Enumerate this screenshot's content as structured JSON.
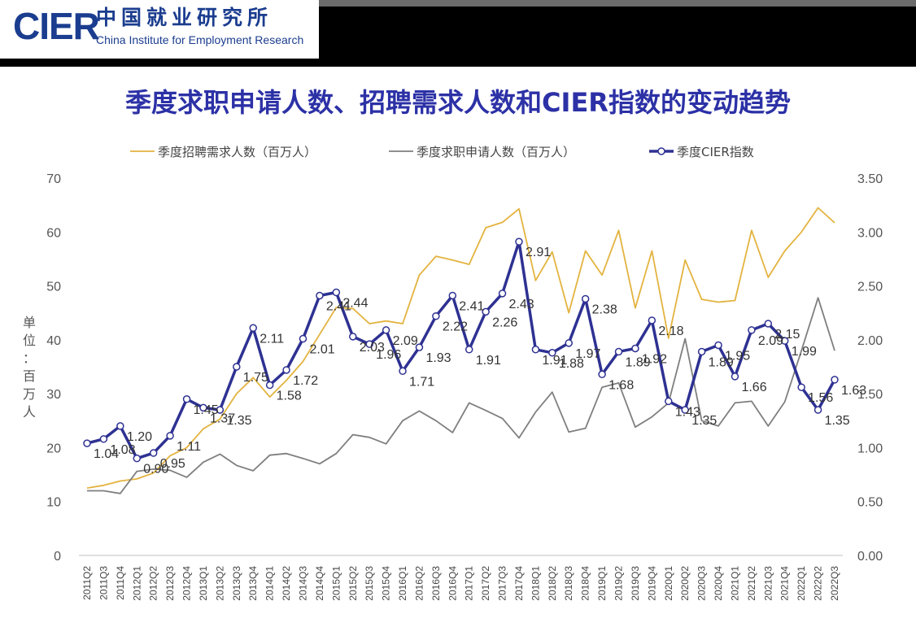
{
  "header": {
    "logo_text": "CIER",
    "org_name_cn": "中国就业研究所",
    "org_name_en": "China Institute for Employment Research"
  },
  "title": "季度求职申请人数、招聘需求人数和CIER指数的变动趋势",
  "chart_data": {
    "type": "line",
    "title": "季度求职申请人数、招聘需求人数和CIER指数的变动趋势",
    "ylabel": "单位：百万人",
    "ylim": [
      0,
      70
    ],
    "y_ticks": [
      "0",
      "10",
      "20",
      "30",
      "40",
      "50",
      "60",
      "70"
    ],
    "y2lim": [
      0,
      3.5
    ],
    "y2_ticks": [
      "0.00",
      "0.50",
      "1.00",
      "1.50",
      "2.00",
      "2.50",
      "3.00",
      "3.50"
    ],
    "grid": false,
    "legend_position": "top",
    "x": [
      "2011Q2",
      "2011Q3",
      "2011Q4",
      "2012Q1",
      "2012Q2",
      "2012Q3",
      "2012Q4",
      "2013Q1",
      "2013Q2",
      "2013Q3",
      "2013Q4",
      "2014Q1",
      "2014Q2",
      "2014Q3",
      "2014Q4",
      "2015Q1",
      "2015Q2",
      "2015Q3",
      "2015Q4",
      "2016Q1",
      "2016Q2",
      "2016Q3",
      "2016Q4",
      "2017Q1",
      "2017Q2",
      "2017Q3",
      "2017Q4",
      "2018Q1",
      "2018Q2",
      "2018Q3",
      "2018Q4",
      "2019Q1",
      "2019Q2",
      "2019Q3",
      "2019Q4",
      "2020Q1",
      "2020Q2",
      "2020Q3",
      "2020Q4",
      "2021Q1",
      "2021Q2",
      "2021Q3",
      "2021Q4",
      "2022Q1",
      "2022Q2",
      "2022Q3"
    ],
    "series": [
      {
        "name": "季度招聘需求人数（百万人）",
        "axis": "left",
        "color": "#e3b33f",
        "values": [
          12.5,
          13.0,
          13.8,
          14.2,
          15.3,
          18.5,
          20.0,
          23.5,
          25.3,
          30.0,
          33.0,
          29.4,
          32.5,
          36.0,
          41.0,
          46.0,
          45.8,
          43.0,
          43.5,
          43.0,
          52.0,
          55.5,
          54.8,
          54.0,
          60.8,
          61.8,
          64.3,
          51.0,
          56.3,
          45.0,
          56.5,
          52.0,
          60.3,
          45.9,
          56.5,
          40.3,
          54.8,
          47.5,
          47.0,
          47.3,
          60.3,
          51.6,
          56.5,
          60.0,
          64.5,
          61.7
        ]
      },
      {
        "name": "季度求职申请人数（百万人）",
        "axis": "left",
        "color": "#7f7f7f",
        "values": [
          12.0,
          12.0,
          11.5,
          15.6,
          16.0,
          15.8,
          14.5,
          17.3,
          18.8,
          16.7,
          15.7,
          18.6,
          18.9,
          18.0,
          17.0,
          18.9,
          22.4,
          21.9,
          20.7,
          25.0,
          26.8,
          25.0,
          22.8,
          28.3,
          26.9,
          25.4,
          21.8,
          26.6,
          30.3,
          22.9,
          23.6,
          31.2,
          32.0,
          23.8,
          25.7,
          28.3,
          40.2,
          25.0,
          24.0,
          28.3,
          28.6,
          24.0,
          28.5,
          38.0,
          47.8,
          38.0
        ]
      },
      {
        "name": "季度CIER指数",
        "axis": "right",
        "color": "#2e3192",
        "values": [
          1.04,
          1.08,
          1.2,
          0.9,
          0.95,
          1.11,
          1.45,
          1.37,
          1.35,
          1.75,
          2.11,
          1.58,
          1.72,
          2.01,
          2.41,
          2.44,
          2.03,
          1.96,
          2.09,
          1.71,
          1.93,
          2.22,
          2.41,
          1.91,
          2.26,
          2.43,
          2.91,
          1.91,
          1.88,
          1.97,
          2.38,
          1.68,
          1.89,
          1.92,
          2.18,
          1.43,
          1.35,
          1.89,
          1.95,
          1.66,
          2.09,
          2.15,
          1.99,
          1.56,
          1.35,
          1.63
        ],
        "data_labels": [
          "1.04",
          "1.08",
          "1.20",
          "0.90",
          "0.95",
          "1.11",
          "1.45",
          "1.37",
          "1.35",
          "1.75",
          "2.11",
          "1.58",
          "1.72",
          "2.01",
          "2.41",
          "2.44",
          "2.03",
          "1.96",
          "2.09",
          "1.71",
          "1.93",
          "2.22",
          "2.41",
          "1.91",
          "2.26",
          "2.43",
          "2.91",
          "1.91",
          "1.88",
          "1.97",
          "2.38",
          "1.68",
          "1.89",
          "1.92",
          "2.18",
          "1.43",
          "1.35",
          "1.89",
          "1.95",
          "1.66",
          "2.09",
          "2.15",
          "1.99",
          "1.56",
          "1.35",
          "1.63"
        ]
      }
    ]
  }
}
